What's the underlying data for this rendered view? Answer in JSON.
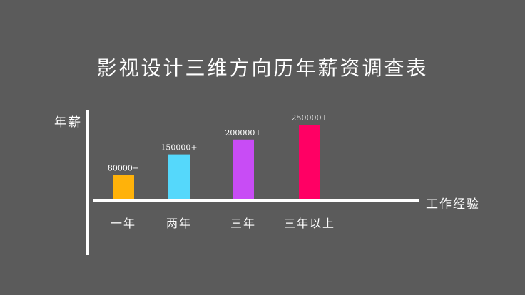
{
  "chart_data": {
    "type": "bar",
    "title": "影视设计三维方向历年薪资调查表",
    "xlabel": "工作经验",
    "ylabel": "年薪",
    "categories": [
      "一年",
      "两年",
      "三年",
      "三年以上"
    ],
    "values": [
      80000,
      150000,
      200000,
      250000
    ],
    "data_labels": [
      "80000+",
      "150000+",
      "200000+",
      "250000+"
    ],
    "colors": [
      "#ffb20a",
      "#55d8fb",
      "#c84cf5",
      "#ff0064"
    ],
    "grid": false,
    "legend": "none"
  }
}
